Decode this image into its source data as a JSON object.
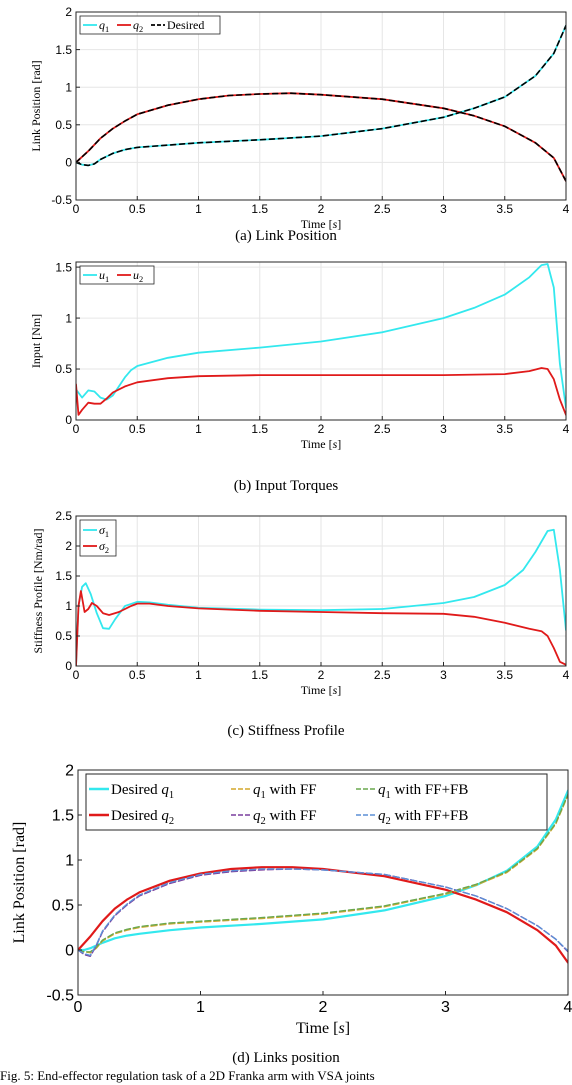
{
  "figure_caption": "Fig. 5: End-effector regulation task of a 2D Franka arm with VSA joints",
  "colors": {
    "q1": "#33e8ee",
    "q2": "#e01a1a",
    "desired": "#000000",
    "ff1": "#d4a72c",
    "fb1": "#6aa84f",
    "ff2": "#7a3e9e",
    "fb2": "#5b8fd6"
  },
  "chart_data": [
    {
      "type": "line",
      "caption": "(a) Link Position",
      "xlabel": "Time [s]",
      "ylabel": "Link Position [rad]",
      "xlim": [
        0,
        4
      ],
      "ylim": [
        -0.5,
        2
      ],
      "xticks": [
        "0",
        "0.5",
        "1",
        "1.5",
        "2",
        "2.5",
        "3",
        "3.5",
        "4"
      ],
      "yticks": [
        "-0.5",
        "0",
        "0.5",
        "1",
        "1.5",
        "2"
      ],
      "grid": true,
      "legend_placement": "top-left",
      "legend_layout": "row",
      "series": [
        {
          "name": "q1",
          "label_main": "q",
          "label_sub": "1",
          "color": "#33e8ee",
          "dash": "",
          "x": [
            0,
            0.05,
            0.1,
            0.15,
            0.2,
            0.3,
            0.4,
            0.5,
            0.75,
            1,
            1.5,
            2,
            2.5,
            3,
            3.25,
            3.5,
            3.75,
            3.9,
            4
          ],
          "y": [
            0,
            -0.03,
            -0.04,
            -0.02,
            0.04,
            0.12,
            0.17,
            0.2,
            0.23,
            0.26,
            0.3,
            0.35,
            0.45,
            0.6,
            0.72,
            0.87,
            1.15,
            1.45,
            1.82
          ]
        },
        {
          "name": "q2",
          "label_main": "q",
          "label_sub": "2",
          "color": "#e01a1a",
          "dash": "",
          "x": [
            0,
            0.1,
            0.2,
            0.3,
            0.4,
            0.5,
            0.75,
            1,
            1.25,
            1.5,
            1.75,
            2,
            2.5,
            3,
            3.25,
            3.5,
            3.75,
            3.9,
            4
          ],
          "y": [
            0,
            0.15,
            0.32,
            0.45,
            0.55,
            0.64,
            0.76,
            0.84,
            0.89,
            0.91,
            0.92,
            0.9,
            0.84,
            0.72,
            0.62,
            0.48,
            0.26,
            0.06,
            -0.25
          ]
        },
        {
          "name": "Desired",
          "label_main": "Desired",
          "label_sub": "",
          "color": "#000000",
          "dash": "5,4",
          "mirror": [
            0,
            1
          ]
        }
      ]
    },
    {
      "type": "line",
      "caption": "(b) Input Torques",
      "xlabel": "Time [s]",
      "ylabel": "Input [Nm]",
      "xlim": [
        0,
        4
      ],
      "ylim": [
        0,
        1.55
      ],
      "xticks": [
        "0",
        "0.5",
        "1",
        "1.5",
        "2",
        "2.5",
        "3",
        "3.5",
        "4"
      ],
      "yticks": [
        "0",
        "0.5",
        "1",
        "1.5"
      ],
      "grid": true,
      "legend_placement": "top-left",
      "legend_layout": "row",
      "series": [
        {
          "name": "u1",
          "label_main": "u",
          "label_sub": "1",
          "color": "#33e8ee",
          "dash": "",
          "x": [
            0,
            0.05,
            0.1,
            0.15,
            0.2,
            0.25,
            0.3,
            0.35,
            0.4,
            0.45,
            0.5,
            0.75,
            1,
            1.5,
            2,
            2.5,
            3,
            3.25,
            3.5,
            3.7,
            3.8,
            3.85,
            3.9,
            3.95,
            4
          ],
          "y": [
            0.3,
            0.22,
            0.29,
            0.28,
            0.22,
            0.2,
            0.24,
            0.33,
            0.42,
            0.49,
            0.53,
            0.61,
            0.66,
            0.71,
            0.77,
            0.86,
            1.0,
            1.1,
            1.23,
            1.4,
            1.52,
            1.53,
            1.3,
            0.55,
            0.12
          ]
        },
        {
          "name": "u2",
          "label_main": "u",
          "label_sub": "2",
          "color": "#e01a1a",
          "dash": "",
          "x": [
            0,
            0.02,
            0.05,
            0.1,
            0.15,
            0.2,
            0.25,
            0.3,
            0.4,
            0.5,
            0.75,
            1,
            1.5,
            2,
            3,
            3.5,
            3.7,
            3.8,
            3.85,
            3.9,
            3.95,
            4
          ],
          "y": [
            0.35,
            0.05,
            0.1,
            0.17,
            0.16,
            0.16,
            0.21,
            0.27,
            0.33,
            0.37,
            0.41,
            0.43,
            0.44,
            0.44,
            0.44,
            0.45,
            0.48,
            0.51,
            0.5,
            0.4,
            0.2,
            0.05
          ]
        }
      ]
    },
    {
      "type": "line",
      "caption": "(c) Stiffness Profile",
      "xlabel": "Time [s]",
      "ylabel": "Stiffness Profile [Nm/rad]",
      "xlim": [
        0,
        4
      ],
      "ylim": [
        0,
        2.5
      ],
      "xticks": [
        "0",
        "0.5",
        "1",
        "1.5",
        "2",
        "2.5",
        "3",
        "3.5",
        "4"
      ],
      "yticks": [
        "0",
        "0.5",
        "1",
        "1.5",
        "2",
        "2.5"
      ],
      "grid": true,
      "legend_placement": "top-left",
      "legend_layout": "column",
      "series": [
        {
          "name": "σ1",
          "label_main": "σ",
          "label_sub": "1",
          "color": "#33e8ee",
          "dash": "",
          "x": [
            0,
            0.02,
            0.05,
            0.08,
            0.12,
            0.17,
            0.22,
            0.27,
            0.32,
            0.4,
            0.5,
            0.6,
            0.75,
            1,
            1.5,
            2,
            2.5,
            3,
            3.25,
            3.5,
            3.65,
            3.75,
            3.85,
            3.9,
            3.95,
            4
          ],
          "y": [
            0,
            1.0,
            1.32,
            1.38,
            1.2,
            0.88,
            0.63,
            0.62,
            0.78,
            1.0,
            1.07,
            1.06,
            1.02,
            0.97,
            0.94,
            0.93,
            0.95,
            1.05,
            1.15,
            1.35,
            1.6,
            1.9,
            2.25,
            2.27,
            1.6,
            0.6
          ]
        },
        {
          "name": "σ2",
          "label_main": "σ",
          "label_sub": "2",
          "color": "#e01a1a",
          "dash": "",
          "x": [
            0,
            0.02,
            0.04,
            0.07,
            0.1,
            0.13,
            0.17,
            0.22,
            0.27,
            0.35,
            0.45,
            0.5,
            0.6,
            0.75,
            1,
            1.5,
            2,
            2.5,
            3,
            3.25,
            3.5,
            3.7,
            3.8,
            3.85,
            3.9,
            3.95,
            4
          ],
          "y": [
            0,
            1.0,
            1.25,
            0.9,
            0.95,
            1.05,
            1.0,
            0.88,
            0.85,
            0.9,
            1.0,
            1.04,
            1.04,
            1.0,
            0.96,
            0.92,
            0.9,
            0.88,
            0.87,
            0.82,
            0.72,
            0.62,
            0.58,
            0.5,
            0.3,
            0.07,
            0.02
          ]
        }
      ]
    },
    {
      "type": "line",
      "caption": "(d) Links position",
      "xlabel": "Time [s]",
      "ylabel": "Link Position [rad]",
      "xlim": [
        0,
        4
      ],
      "ylim": [
        -0.5,
        2
      ],
      "xticks": [
        "0",
        "1",
        "2",
        "3",
        "4"
      ],
      "yticks": [
        "-0.5",
        "0",
        "0.5",
        "1",
        "1.5",
        "2"
      ],
      "grid": false,
      "legend_placement": "top",
      "legend_layout": "grid3",
      "series": [
        {
          "name": "Desired q1",
          "label_main": "Desired q",
          "label_sub": "1",
          "label_post": "",
          "color": "#33e8ee",
          "dash": "",
          "width": 2.2,
          "x": [
            0,
            0.05,
            0.1,
            0.2,
            0.3,
            0.4,
            0.5,
            0.75,
            1,
            1.5,
            2,
            2.5,
            3,
            3.25,
            3.5,
            3.75,
            3.9,
            4
          ],
          "y": [
            0,
            0.0,
            0.02,
            0.08,
            0.13,
            0.16,
            0.18,
            0.22,
            0.25,
            0.29,
            0.34,
            0.44,
            0.6,
            0.72,
            0.88,
            1.15,
            1.45,
            1.77
          ]
        },
        {
          "name": "q1 with FF",
          "label_main": "q",
          "label_sub": "1",
          "label_post": " with FF",
          "color": "#d4a72c",
          "dash": "6,3",
          "width": 1.4,
          "x": [
            0,
            0.05,
            0.1,
            0.15,
            0.2,
            0.3,
            0.4,
            0.5,
            0.75,
            1,
            1.5,
            2,
            2.5,
            3,
            3.25,
            3.5,
            3.75,
            3.9,
            4
          ],
          "y": [
            0,
            -0.02,
            -0.03,
            0.02,
            0.1,
            0.18,
            0.22,
            0.25,
            0.29,
            0.31,
            0.35,
            0.4,
            0.48,
            0.62,
            0.72,
            0.86,
            1.12,
            1.4,
            1.72
          ]
        },
        {
          "name": "q1 with FF+FB",
          "label_main": "q",
          "label_sub": "1",
          "label_post": " with FF+FB",
          "color": "#6aa84f",
          "dash": "6,3",
          "width": 1.4,
          "x": [
            0,
            0.05,
            0.1,
            0.15,
            0.2,
            0.3,
            0.4,
            0.5,
            0.75,
            1,
            1.5,
            2,
            2.5,
            3,
            3.25,
            3.5,
            3.75,
            3.9,
            4
          ],
          "y": [
            0,
            -0.02,
            -0.02,
            0.03,
            0.11,
            0.19,
            0.23,
            0.26,
            0.3,
            0.32,
            0.36,
            0.41,
            0.49,
            0.63,
            0.73,
            0.87,
            1.13,
            1.41,
            1.73
          ]
        },
        {
          "name": "Desired q2",
          "label_main": "Desired q",
          "label_sub": "2",
          "label_post": "",
          "color": "#e01a1a",
          "dash": "",
          "width": 2.2,
          "x": [
            0,
            0.1,
            0.2,
            0.3,
            0.4,
            0.5,
            0.75,
            1,
            1.25,
            1.5,
            1.75,
            2,
            2.5,
            3,
            3.25,
            3.5,
            3.75,
            3.9,
            4
          ],
          "y": [
            0,
            0.15,
            0.32,
            0.46,
            0.56,
            0.64,
            0.77,
            0.85,
            0.9,
            0.92,
            0.92,
            0.9,
            0.82,
            0.67,
            0.56,
            0.42,
            0.22,
            0.05,
            -0.14
          ]
        },
        {
          "name": "q2 with FF",
          "label_main": "q",
          "label_sub": "2",
          "label_post": " with FF",
          "color": "#7a3e9e",
          "dash": "6,3",
          "width": 1.4,
          "x": [
            0,
            0.05,
            0.1,
            0.15,
            0.2,
            0.3,
            0.4,
            0.5,
            0.75,
            1,
            1.25,
            1.5,
            1.75,
            2,
            2.5,
            3,
            3.25,
            3.5,
            3.75,
            3.9,
            4
          ],
          "y": [
            0,
            -0.05,
            -0.07,
            0.05,
            0.2,
            0.38,
            0.5,
            0.6,
            0.74,
            0.83,
            0.87,
            0.89,
            0.9,
            0.89,
            0.84,
            0.7,
            0.6,
            0.46,
            0.27,
            0.12,
            -0.02
          ]
        },
        {
          "name": "q2 with FF+FB",
          "label_main": "q",
          "label_sub": "2",
          "label_post": " with FF+FB",
          "color": "#5b8fd6",
          "dash": "6,3",
          "width": 1.4,
          "x": [
            0,
            0.05,
            0.1,
            0.15,
            0.2,
            0.3,
            0.4,
            0.5,
            0.75,
            1,
            1.25,
            1.5,
            1.75,
            2,
            2.5,
            3,
            3.25,
            3.5,
            3.75,
            3.9,
            4
          ],
          "y": [
            0,
            -0.04,
            -0.06,
            0.06,
            0.21,
            0.39,
            0.51,
            0.61,
            0.75,
            0.84,
            0.88,
            0.9,
            0.9,
            0.89,
            0.84,
            0.7,
            0.6,
            0.46,
            0.27,
            0.12,
            -0.01
          ]
        }
      ]
    }
  ]
}
